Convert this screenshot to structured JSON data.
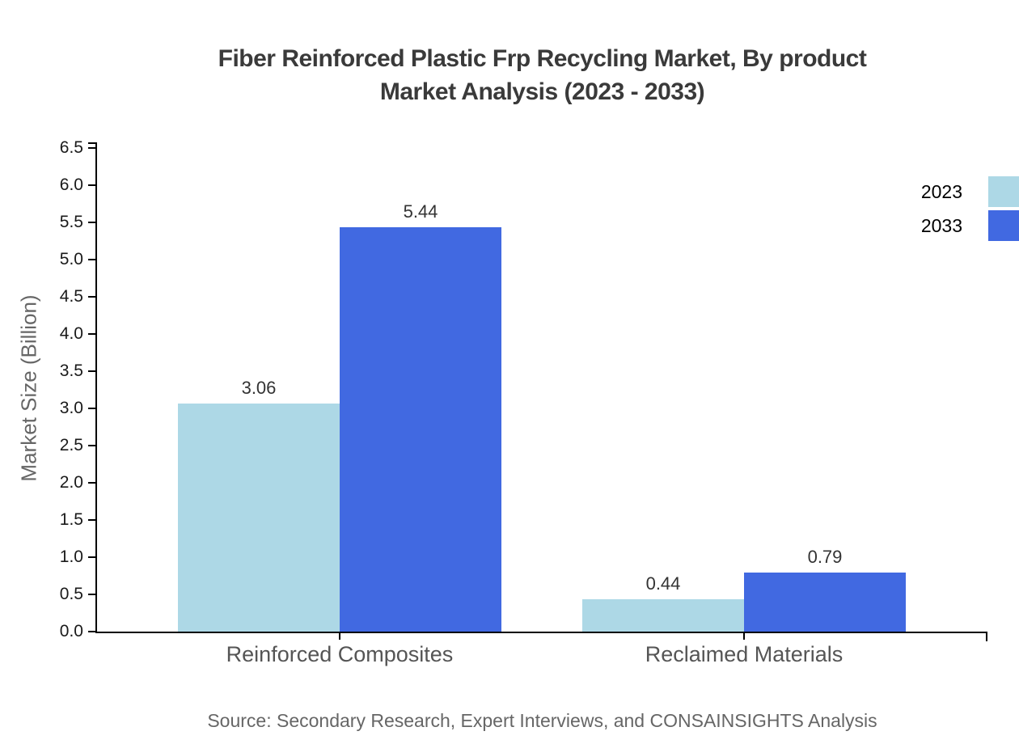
{
  "chart_data": {
    "type": "bar",
    "title": "Fiber Reinforced Plastic Frp Recycling Market, By product Market Analysis (2023 - 2033)",
    "title_lines": [
      "Fiber Reinforced Plastic Frp Recycling Market, By product",
      "Market Analysis (2023 - 2033)"
    ],
    "ylabel": "Market Size (Billion)",
    "xlabel": "",
    "categories": [
      "Reinforced Composites",
      "Reclaimed Materials"
    ],
    "series": [
      {
        "name": "2023",
        "color": "#ADD8E6",
        "values": [
          3.06,
          0.44
        ]
      },
      {
        "name": "2033",
        "color": "#4169E1",
        "values": [
          5.44,
          0.79
        ]
      }
    ],
    "ylim": [
      0,
      6.5
    ],
    "ytick_step": 0.5,
    "grid": false,
    "legend_position": "top-right",
    "axis_color": "#000000"
  },
  "source_note": "Source: Secondary Research, Expert Interviews, and CONSAINSIGHTS Analysis"
}
